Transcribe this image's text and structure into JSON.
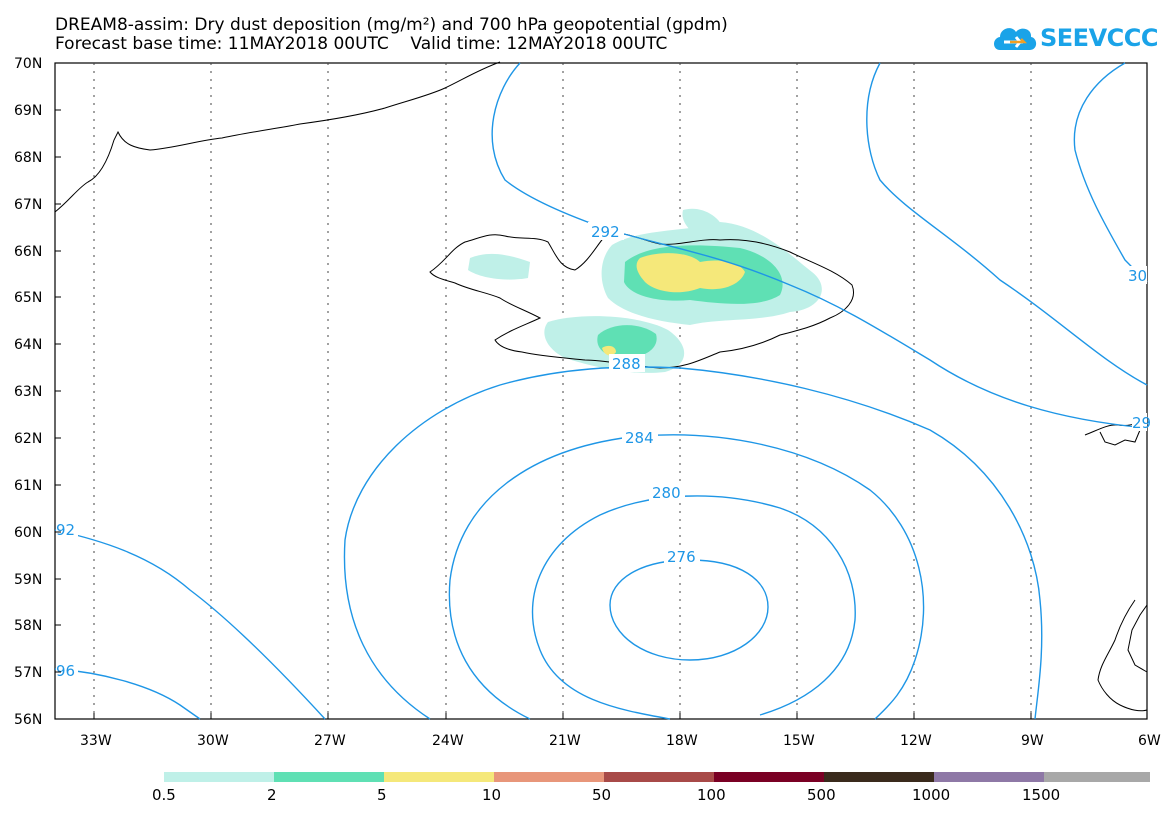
{
  "title": {
    "line1": "DREAM8-assim: Dry dust deposition (mg/m²) and 700 hPa geopotential (gpdm)",
    "line2": "Forecast base time: 11MAY2018 00UTC    Valid time: 12MAY2018 00UTC"
  },
  "logo": {
    "text": "SEEVCCC",
    "icon": "cloud-arrow-icon",
    "color": "#1aa3e8"
  },
  "map": {
    "lat_labels": [
      "70N",
      "69N",
      "68N",
      "67N",
      "66N",
      "65N",
      "64N",
      "63N",
      "62N",
      "61N",
      "60N",
      "59N",
      "58N",
      "57N",
      "56N"
    ],
    "lon_labels": [
      "33W",
      "30W",
      "27W",
      "24W",
      "21W",
      "18W",
      "15W",
      "12W",
      "9W",
      "6W"
    ],
    "lat_range": [
      56,
      70
    ],
    "lon_range": [
      -34,
      -6
    ],
    "grid": "dotted",
    "contour_color": "#1e96e6",
    "contour_labels": [
      "292",
      "288",
      "284",
      "280",
      "276",
      "92",
      "96",
      "30",
      "29"
    ]
  },
  "legend": {
    "labels": [
      "0.5",
      "2",
      "5",
      "10",
      "50",
      "100",
      "500",
      "1000",
      "1500"
    ],
    "colors": [
      "#bff0e8",
      "#5fe0b4",
      "#f5e87a",
      "#e8967a",
      "#a84a48",
      "#7a0024",
      "#3a2a1c",
      "#8e78a6",
      "#a8a8a8"
    ]
  }
}
